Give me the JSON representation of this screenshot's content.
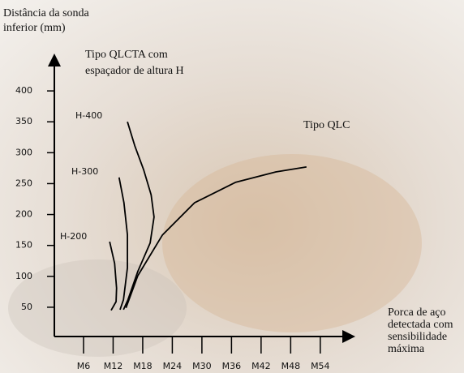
{
  "chart_data": {
    "type": "line",
    "y_label": [
      "Distância da sonda",
      "inferior (mm)"
    ],
    "x_label": [
      "Porca de aço",
      "detectada com",
      "sensibilidade",
      " máxima"
    ],
    "annotation": [
      "Tipo QLCTA com",
      " espaçador de altura H"
    ],
    "xlim": [
      0,
      60
    ],
    "ylim": [
      0,
      450
    ],
    "xticks": [
      {
        "value": 6,
        "label": "M6"
      },
      {
        "value": 12,
        "label": "M12"
      },
      {
        "value": 18,
        "label": "M18"
      },
      {
        "value": 24,
        "label": "M24"
      },
      {
        "value": 30,
        "label": "M30"
      },
      {
        "value": 36,
        "label": "M36"
      },
      {
        "value": 42,
        "label": "M42"
      },
      {
        "value": 48,
        "label": "M48"
      },
      {
        "value": 54,
        "label": "M54"
      }
    ],
    "yticks": [
      50,
      100,
      150,
      200,
      250,
      300,
      350,
      400
    ],
    "series": [
      {
        "name": "H-200",
        "color": "#000000",
        "x": [
          11.3,
          12.3,
          12.7,
          12.6,
          11.6
        ],
        "values": [
          156,
          121,
          81,
          59,
          45
        ]
      },
      {
        "name": "H-300",
        "color": "#000000",
        "x": [
          13.2,
          14.2,
          14.9,
          14.9,
          14.1,
          13.4
        ],
        "values": [
          260,
          219,
          167,
          114,
          62,
          46
        ]
      },
      {
        "name": "H-400",
        "color": "#000000",
        "x": [
          14.9,
          16.4,
          18.2,
          19.7,
          20.3,
          19.5,
          17.0,
          15.0,
          14.1
        ],
        "values": [
          350,
          311,
          272,
          232,
          196,
          154,
          108,
          62,
          46
        ]
      },
      {
        "name": "Tipo QLC",
        "color": "#000000",
        "x": [
          14.6,
          17.0,
          22.0,
          28.5,
          36.8,
          45.0,
          51.2
        ],
        "values": [
          49,
          101,
          167,
          219,
          252,
          269,
          277
        ]
      }
    ]
  }
}
